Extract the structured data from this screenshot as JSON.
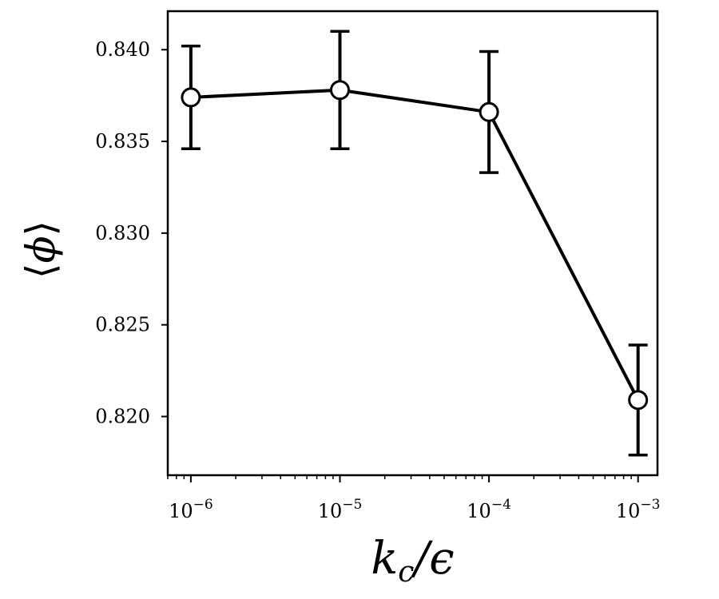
{
  "chart_data": {
    "type": "line",
    "title": "",
    "xlabel": {
      "main": "k",
      "sub": "c",
      "rest": "/ϵ"
    },
    "ylabel": {
      "left": "⟨",
      "symbol": "ϕ",
      "right": "⟩"
    },
    "x_scale": "log",
    "xlim": [
      7e-07,
      0.00135
    ],
    "ylim": [
      0.8168,
      0.8421
    ],
    "x_ticks": [
      {
        "value": 1e-06,
        "base": "10",
        "exp": "−6"
      },
      {
        "value": 1e-05,
        "base": "10",
        "exp": "−5"
      },
      {
        "value": 0.0001,
        "base": "10",
        "exp": "−4"
      },
      {
        "value": 0.001,
        "base": "10",
        "exp": "−3"
      }
    ],
    "y_ticks": [
      {
        "value": 0.82,
        "label": "0.820"
      },
      {
        "value": 0.825,
        "label": "0.825"
      },
      {
        "value": 0.83,
        "label": "0.830"
      },
      {
        "value": 0.835,
        "label": "0.835"
      },
      {
        "value": 0.84,
        "label": "0.840"
      }
    ],
    "grid": false,
    "series": [
      {
        "color": "#000000",
        "marker": "open-circle",
        "points": [
          {
            "x": 1e-06,
            "y": 0.8374,
            "err": 0.0028
          },
          {
            "x": 1e-05,
            "y": 0.8378,
            "err": 0.0032
          },
          {
            "x": 0.0001,
            "y": 0.8366,
            "err": 0.0033
          },
          {
            "x": 0.001,
            "y": 0.8209,
            "err": 0.003
          }
        ]
      }
    ]
  }
}
